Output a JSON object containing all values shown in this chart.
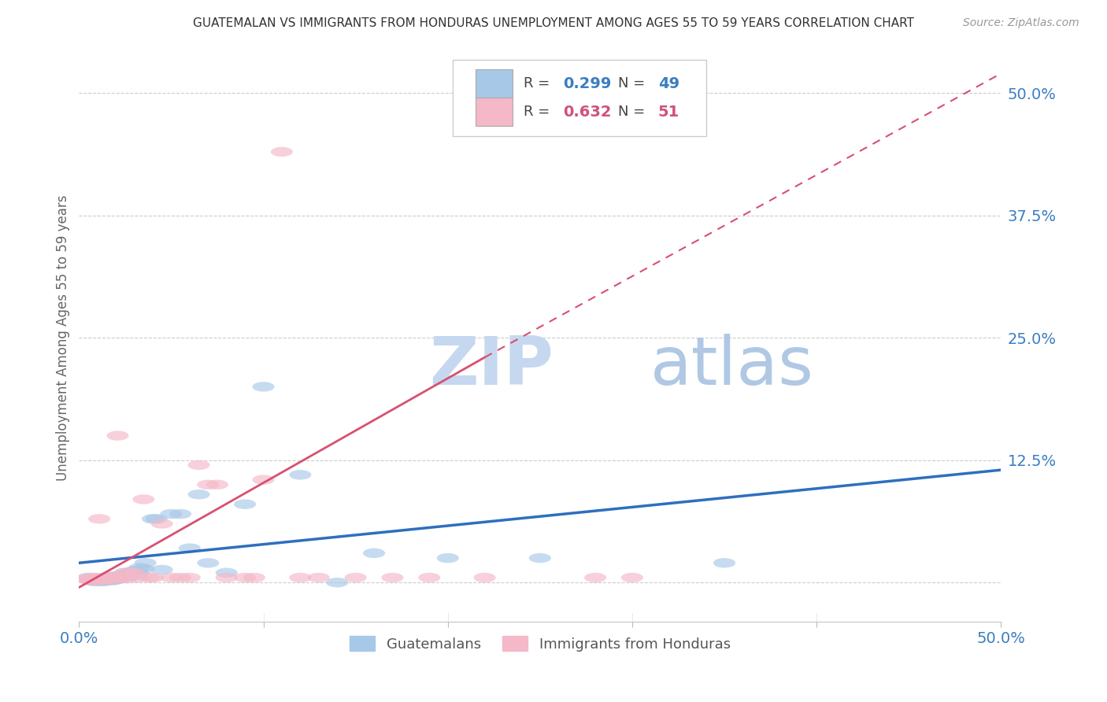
{
  "title": "GUATEMALAN VS IMMIGRANTS FROM HONDURAS UNEMPLOYMENT AMONG AGES 55 TO 59 YEARS CORRELATION CHART",
  "source": "Source: ZipAtlas.com",
  "ylabel": "Unemployment Among Ages 55 to 59 years",
  "xlim": [
    0.0,
    0.5
  ],
  "ylim": [
    -0.04,
    0.54
  ],
  "xticks": [
    0.0,
    0.1,
    0.2,
    0.3,
    0.4,
    0.5
  ],
  "yticks_right": [
    0.0,
    0.125,
    0.25,
    0.375,
    0.5
  ],
  "ytick_labels_right": [
    "",
    "12.5%",
    "25.0%",
    "37.5%",
    "50.0%"
  ],
  "xtick_labels": [
    "0.0%",
    "",
    "",
    "",
    "",
    "50.0%"
  ],
  "color_blue": "#a8c8e8",
  "color_pink": "#f4b8c8",
  "color_blue_dark": "#5b9bd5",
  "color_blue_text": "#3a7ebf",
  "color_pink_text": "#d05080",
  "color_trend_blue": "#2e6fbe",
  "color_trend_pink": "#d85070",
  "watermark_zip": "#c8d8ee",
  "watermark_atlas": "#b8cce0",
  "background_color": "#ffffff",
  "guatemalans_x": [
    0.005,
    0.007,
    0.008,
    0.009,
    0.01,
    0.01,
    0.011,
    0.012,
    0.013,
    0.014,
    0.015,
    0.015,
    0.016,
    0.017,
    0.018,
    0.018,
    0.019,
    0.02,
    0.02,
    0.021,
    0.022,
    0.023,
    0.025,
    0.026,
    0.027,
    0.028,
    0.03,
    0.031,
    0.032,
    0.033,
    0.035,
    0.036,
    0.04,
    0.042,
    0.045,
    0.05,
    0.055,
    0.06,
    0.065,
    0.07,
    0.08,
    0.09,
    0.1,
    0.12,
    0.14,
    0.16,
    0.2,
    0.25,
    0.35
  ],
  "guatemalans_y": [
    0.005,
    0.002,
    0.003,
    0.001,
    0.004,
    0.002,
    0.003,
    0.002,
    0.001,
    0.003,
    0.002,
    0.005,
    0.003,
    0.004,
    0.002,
    0.006,
    0.003,
    0.005,
    0.003,
    0.004,
    0.007,
    0.005,
    0.01,
    0.008,
    0.006,
    0.01,
    0.012,
    0.008,
    0.01,
    0.015,
    0.014,
    0.02,
    0.065,
    0.065,
    0.013,
    0.07,
    0.07,
    0.035,
    0.09,
    0.02,
    0.01,
    0.08,
    0.2,
    0.11,
    0.0,
    0.03,
    0.025,
    0.025,
    0.02
  ],
  "honduras_x": [
    0.004,
    0.005,
    0.006,
    0.007,
    0.008,
    0.009,
    0.01,
    0.01,
    0.011,
    0.012,
    0.013,
    0.014,
    0.015,
    0.015,
    0.016,
    0.016,
    0.017,
    0.018,
    0.019,
    0.02,
    0.021,
    0.022,
    0.023,
    0.025,
    0.026,
    0.028,
    0.03,
    0.032,
    0.035,
    0.038,
    0.04,
    0.045,
    0.05,
    0.055,
    0.06,
    0.065,
    0.07,
    0.075,
    0.08,
    0.09,
    0.095,
    0.1,
    0.11,
    0.12,
    0.13,
    0.15,
    0.17,
    0.19,
    0.22,
    0.28,
    0.3
  ],
  "honduras_y": [
    0.004,
    0.003,
    0.002,
    0.005,
    0.003,
    0.004,
    0.005,
    0.002,
    0.065,
    0.004,
    0.003,
    0.005,
    0.004,
    0.003,
    0.006,
    0.005,
    0.004,
    0.003,
    0.006,
    0.005,
    0.15,
    0.004,
    0.005,
    0.01,
    0.004,
    0.01,
    0.01,
    0.005,
    0.085,
    0.005,
    0.005,
    0.06,
    0.005,
    0.005,
    0.005,
    0.12,
    0.1,
    0.1,
    0.005,
    0.005,
    0.005,
    0.105,
    0.44,
    0.005,
    0.005,
    0.005,
    0.005,
    0.005,
    0.005,
    0.005,
    0.005
  ],
  "trend_blue_x0": 0.0,
  "trend_blue_x1": 0.5,
  "trend_blue_y0": 0.02,
  "trend_blue_y1": 0.115,
  "trend_pink_solid_x0": 0.0,
  "trend_pink_solid_x1": 0.22,
  "trend_pink_solid_y0": -0.005,
  "trend_pink_solid_y1": 0.23,
  "trend_pink_dash_x0": 0.22,
  "trend_pink_dash_x1": 0.5,
  "trend_pink_dash_y0": 0.23,
  "trend_pink_dash_y1": 0.52
}
